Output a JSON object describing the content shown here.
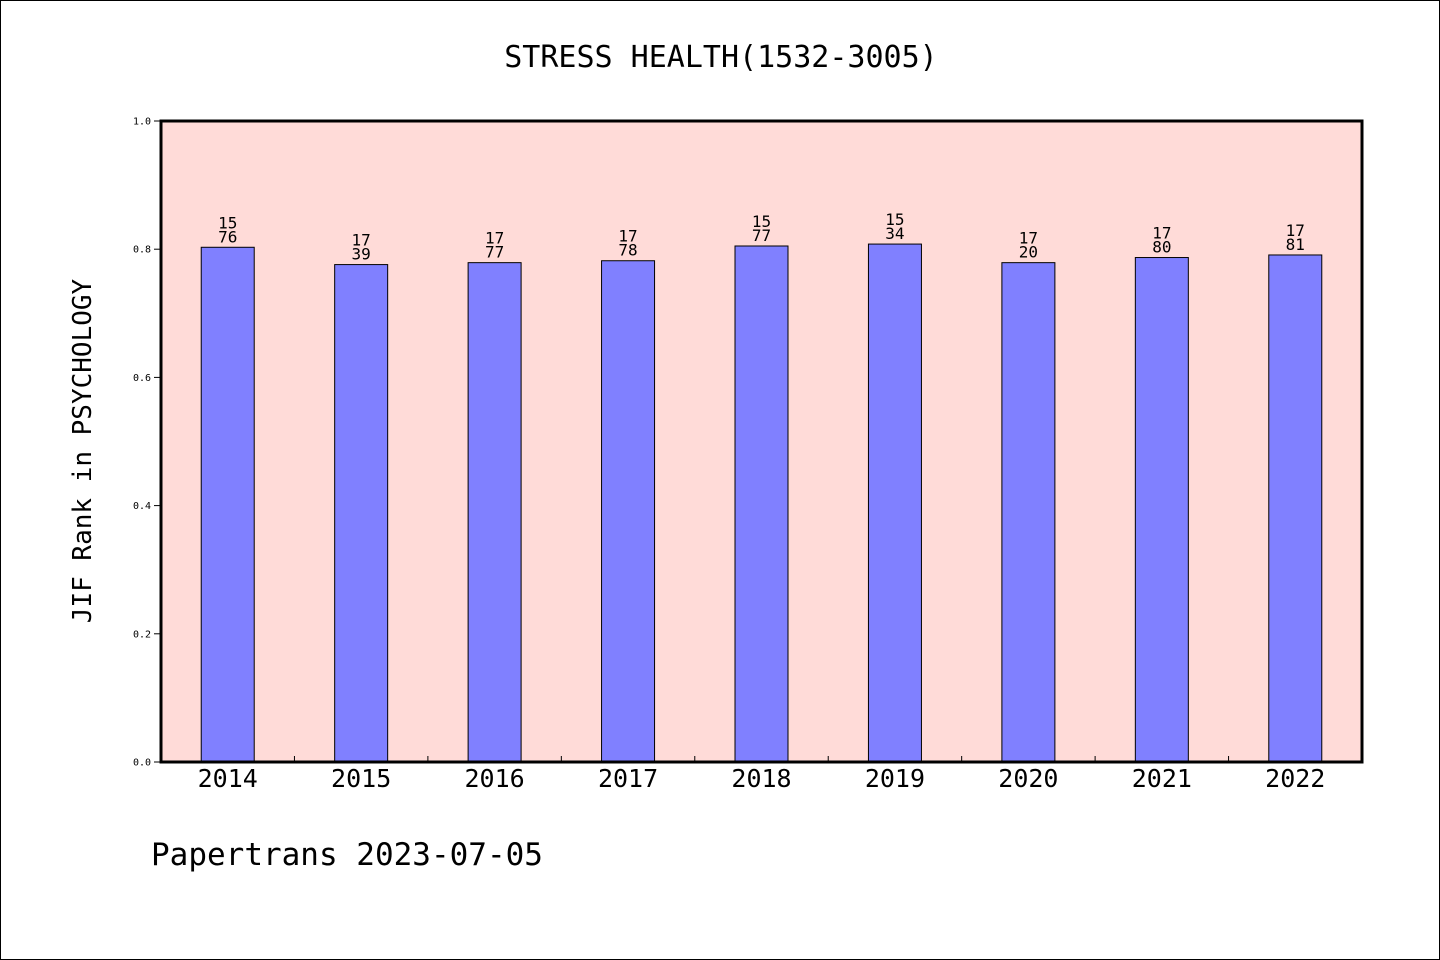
{
  "colors": {
    "plot_background": "#ffdbd8",
    "bar_fill": "#8080ff",
    "bar_stroke": "#000000",
    "axis": "#000000"
  },
  "footer": {
    "text": "Papertrans 2023-07-05"
  },
  "chart_data": {
    "type": "bar",
    "title": "STRESS HEALTH(1532-3005)",
    "xlabel": "",
    "ylabel": "JIF Rank in PSYCHOLOGY",
    "ylim": [
      0,
      1.0
    ],
    "yticks": [
      "0.0",
      "0.2",
      "0.4",
      "0.6",
      "0.8",
      "1.0"
    ],
    "grid": false,
    "categories": [
      "2014",
      "2015",
      "2016",
      "2017",
      "2018",
      "2019",
      "2020",
      "2021",
      "2022"
    ],
    "values": [
      0.803,
      0.776,
      0.779,
      0.782,
      0.805,
      0.808,
      0.779,
      0.787,
      0.791
    ],
    "bar_labels": [
      [
        "15",
        "76"
      ],
      [
        "17",
        "39"
      ],
      [
        "17",
        "77"
      ],
      [
        "17",
        "78"
      ],
      [
        "15",
        "77"
      ],
      [
        "15",
        "34"
      ],
      [
        "17",
        "20"
      ],
      [
        "17",
        "80"
      ],
      [
        "17",
        "81"
      ]
    ]
  }
}
